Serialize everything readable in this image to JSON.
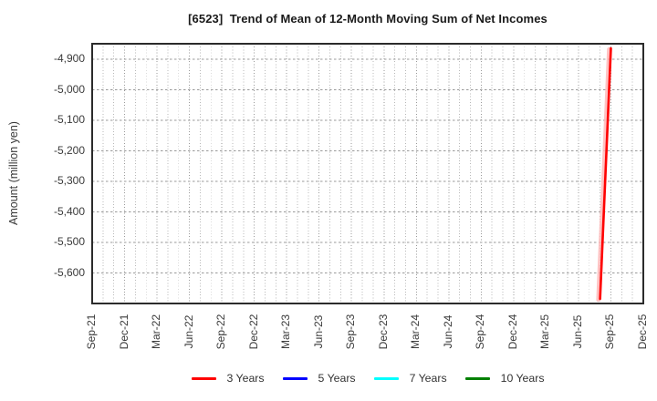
{
  "title": "[6523]  Trend of Mean of 12-Month Moving Sum of Net Incomes",
  "y_axis": {
    "label": "Amount (million yen)",
    "ticks": [
      {
        "label": "-4,900",
        "value": -4900
      },
      {
        "label": "-5,000",
        "value": -5000
      },
      {
        "label": "-5,100",
        "value": -5100
      },
      {
        "label": "-5,200",
        "value": -5200
      },
      {
        "label": "-5,300",
        "value": -5300
      },
      {
        "label": "-5,400",
        "value": -5400
      },
      {
        "label": "-5,500",
        "value": -5500
      },
      {
        "label": "-5,600",
        "value": -5600
      }
    ]
  },
  "x_axis": {
    "ticks": [
      {
        "label": "Sep-21",
        "month_index": 0
      },
      {
        "label": "Dec-21",
        "month_index": 3
      },
      {
        "label": "Mar-22",
        "month_index": 6
      },
      {
        "label": "Jun-22",
        "month_index": 9
      },
      {
        "label": "Sep-22",
        "month_index": 12
      },
      {
        "label": "Dec-22",
        "month_index": 15
      },
      {
        "label": "Mar-23",
        "month_index": 18
      },
      {
        "label": "Jun-23",
        "month_index": 21
      },
      {
        "label": "Sep-23",
        "month_index": 24
      },
      {
        "label": "Dec-23",
        "month_index": 27
      },
      {
        "label": "Mar-24",
        "month_index": 30
      },
      {
        "label": "Jun-24",
        "month_index": 33
      },
      {
        "label": "Sep-24",
        "month_index": 36
      },
      {
        "label": "Dec-24",
        "month_index": 39
      },
      {
        "label": "Mar-25",
        "month_index": 42
      },
      {
        "label": "Jun-25",
        "month_index": 45
      },
      {
        "label": "Sep-25",
        "month_index": 48
      },
      {
        "label": "Dec-25",
        "month_index": 51
      }
    ]
  },
  "legend": [
    {
      "label": "3 Years",
      "color": "#ff0000"
    },
    {
      "label": "5 Years",
      "color": "#0000ff"
    },
    {
      "label": "7 Years",
      "color": "#00ffff"
    },
    {
      "label": "10 Years",
      "color": "#008000"
    }
  ],
  "style_colors": {
    "grid_minor": "#b8b8b8",
    "grid_major": "#9a9a9a",
    "plot_border": "#2b2b2b",
    "red_halo": "#ffb4b4"
  },
  "chart_data": {
    "type": "line",
    "title": "[6523]  Trend of Mean of 12-Month Moving Sum of Net Incomes",
    "xlabel": "",
    "ylabel": "Amount (million yen)",
    "ylim": [
      -5700,
      -4850
    ],
    "x_domain": {
      "start": "Sep-21",
      "end": "Dec-25",
      "total_months": 51
    },
    "x_tick_labels": [
      "Sep-21",
      "Dec-21",
      "Mar-22",
      "Jun-22",
      "Sep-22",
      "Dec-22",
      "Mar-23",
      "Jun-23",
      "Sep-23",
      "Dec-23",
      "Mar-24",
      "Jun-24",
      "Sep-24",
      "Dec-24",
      "Mar-25",
      "Jun-25",
      "Sep-25",
      "Dec-25"
    ],
    "grid": true,
    "legend_position": "bottom",
    "series": [
      {
        "name": "3 Years",
        "color": "#ff0000",
        "points": [
          {
            "month": "Aug-25",
            "month_index": 47,
            "value": -5685
          },
          {
            "month": "Sep-25",
            "month_index": 48,
            "value": -4865
          }
        ]
      },
      {
        "name": "5 Years",
        "color": "#0000ff",
        "points": []
      },
      {
        "name": "7 Years",
        "color": "#00ffff",
        "points": []
      },
      {
        "name": "10 Years",
        "color": "#008000",
        "points": []
      }
    ]
  }
}
